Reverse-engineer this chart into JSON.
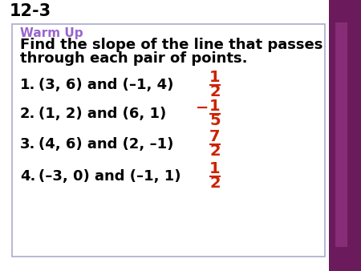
{
  "title": "12-3",
  "warm_up_label": "Warm Up",
  "warm_up_color": "#9966CC",
  "instruction_line1": "Find the slope of the line that passes",
  "instruction_line2": "through each pair of points.",
  "problems": [
    {
      "num": "1.",
      "text": "(3, 6) and (–1, 4)",
      "ans_num": "1",
      "ans_den": "2",
      "neg": false
    },
    {
      "num": "2.",
      "text": "(1, 2) and (6, 1)",
      "ans_num": "1",
      "ans_den": "5",
      "neg": true
    },
    {
      "num": "3.",
      "text": "(4, 6) and (2, –1)",
      "ans_num": "7",
      "ans_den": "2",
      "neg": false
    },
    {
      "num": "4.",
      "text": "(–3, 0) and (–1, 1)",
      "ans_num": "1",
      "ans_den": "2",
      "neg": false
    }
  ],
  "answer_color": "#CC2200",
  "bg_color": "#ffffff",
  "right_bar_color1": "#6B1A5B",
  "right_bar_color2": "#9B3A8B",
  "box_border_color": "#AAAACC",
  "title_fontsize": 15,
  "warmup_fontsize": 11,
  "instruction_fontsize": 13,
  "problem_fontsize": 13,
  "answer_fontsize": 14,
  "neg_fontsize": 14
}
